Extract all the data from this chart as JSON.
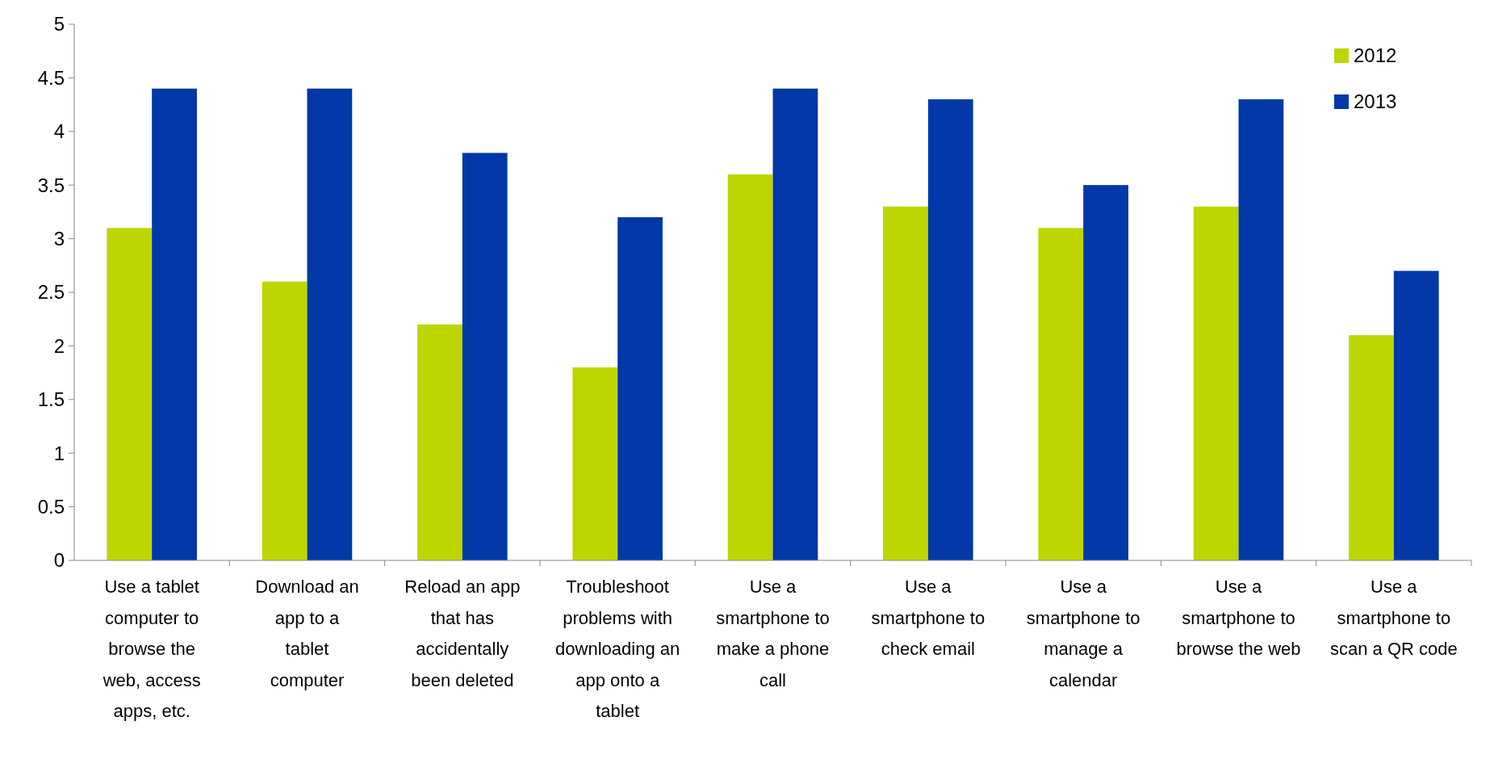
{
  "chart_data": {
    "type": "bar",
    "categories": [
      "Use a tablet computer to browse the web, access apps, etc.",
      "Download an app to a tablet computer",
      "Reload an app that has accidentally been deleted",
      "Troubleshoot problems with downloading an app onto a tablet",
      "Use a smartphone to make a phone call",
      "Use a smartphone to check email",
      "Use a smartphone to manage a calendar",
      "Use a smartphone to browse the web",
      "Use a smartphone to scan a QR code"
    ],
    "series": [
      {
        "name": "2012",
        "color": "#bed600",
        "values": [
          3.1,
          2.6,
          2.2,
          1.8,
          3.6,
          3.3,
          3.1,
          3.3,
          2.1
        ]
      },
      {
        "name": "2013",
        "color": "#0038a8",
        "values": [
          4.4,
          4.4,
          3.8,
          3.2,
          4.4,
          4.3,
          3.5,
          4.3,
          2.7
        ]
      }
    ],
    "ylim": [
      0,
      5
    ],
    "yticks": [
      0,
      0.5,
      1,
      1.5,
      2,
      2.5,
      3,
      3.5,
      4,
      4.5,
      5
    ],
    "grid": false,
    "legend": "top right"
  }
}
